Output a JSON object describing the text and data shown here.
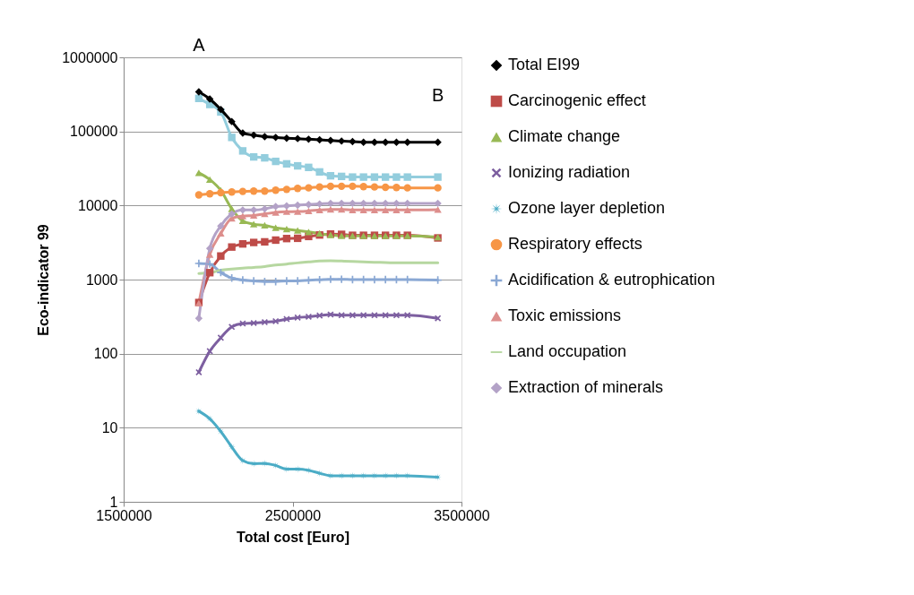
{
  "chart_data": {
    "type": "line",
    "xlabel": "Total cost [Euro]",
    "ylabel": "Eco-indicator 99",
    "x": [
      1945000,
      2010000,
      2075000,
      2140000,
      2205000,
      2270000,
      2335000,
      2400000,
      2465000,
      2530000,
      2595000,
      2660000,
      2725000,
      2790000,
      2855000,
      2920000,
      2985000,
      3050000,
      3115000,
      3180000,
      3360000
    ],
    "xlim": [
      1500000,
      3500000
    ],
    "xticks": [
      1500000,
      2500000,
      3500000
    ],
    "ylim": [
      1,
      1000000
    ],
    "yticks": [
      1,
      10,
      100,
      1000,
      10000,
      100000,
      1000000
    ],
    "log": "y",
    "grid": "y",
    "legend": "right",
    "annotations": [
      {
        "text": "A",
        "x": 1945000,
        "y": 342000
      },
      {
        "text": "B",
        "x": 3360000,
        "y": 71500
      }
    ],
    "series": [
      {
        "color": "#93cddd",
        "marker": "square",
        "values": [
          279000,
          231000,
          183000,
          83000,
          54600,
          45300,
          44000,
          39400,
          36500,
          34300,
          32700,
          28400,
          25200,
          24700,
          24200,
          24200,
          24200,
          24200,
          24200,
          24200,
          24200
        ]
      },
      {
        "name": "Total EI99",
        "color": "#000000",
        "marker": "diamond",
        "values": [
          342000,
          274000,
          198000,
          136000,
          95000,
          89000,
          85000,
          83000,
          81000,
          80000,
          78500,
          77000,
          75500,
          74200,
          72900,
          71500,
          71500,
          71500,
          71500,
          71500,
          71500
        ]
      },
      {
        "name": "Carcinogenic effect",
        "color": "#be4b48",
        "marker": "square",
        "values": [
          490,
          1240,
          2080,
          2750,
          3030,
          3170,
          3230,
          3410,
          3580,
          3610,
          3820,
          4000,
          4120,
          4080,
          3960,
          3960,
          3960,
          3960,
          3960,
          3960,
          3650
        ]
      },
      {
        "name": "Climate change",
        "color": "#98b954",
        "marker": "triangle",
        "values": [
          27600,
          22400,
          16000,
          9000,
          6200,
          5600,
          5400,
          5000,
          4800,
          4600,
          4400,
          4200,
          4000,
          3900,
          3900,
          3900,
          3900,
          3900,
          3900,
          3900,
          3750
        ]
      },
      {
        "name": "Ionizing radiation",
        "color": "#7d5fa0",
        "marker": "cross",
        "values": [
          56,
          108,
          164,
          230,
          255,
          259,
          266,
          274,
          293,
          307,
          315,
          327,
          337,
          330,
          330,
          330,
          330,
          330,
          330,
          330,
          300
        ]
      },
      {
        "name": "Ozone layer depletion",
        "color": "#4bacc6",
        "marker": "star",
        "values": [
          16.7,
          13.2,
          8.9,
          5.5,
          3.6,
          3.27,
          3.3,
          3.1,
          2.76,
          2.76,
          2.66,
          2.43,
          2.25,
          2.25,
          2.25,
          2.25,
          2.25,
          2.25,
          2.25,
          2.25,
          2.15
        ]
      },
      {
        "name": "Respiratory effects",
        "color": "#f79646",
        "marker": "circle",
        "values": [
          13900,
          14400,
          14900,
          15200,
          15500,
          15650,
          15650,
          16100,
          16500,
          17000,
          17300,
          17800,
          18200,
          18200,
          18200,
          18000,
          17800,
          17600,
          17500,
          17300,
          17300
        ]
      },
      {
        "name": "Acidification & eutrophication",
        "color": "#8aa8d4",
        "marker": "plus",
        "values": [
          1650,
          1620,
          1245,
          1050,
          985,
          960,
          940,
          940,
          960,
          960,
          980,
          995,
          1010,
          1010,
          1000,
          1000,
          1000,
          1000,
          1000,
          1000,
          985
        ]
      },
      {
        "name": "Toxic emissions",
        "color": "#dd8e8c",
        "marker": "triangle",
        "values": [
          480,
          2180,
          4200,
          6700,
          7200,
          7350,
          7700,
          8070,
          8250,
          8300,
          8450,
          8700,
          8860,
          8860,
          8700,
          8700,
          8700,
          8700,
          8700,
          8700,
          8800
        ]
      },
      {
        "name": "Land occupation",
        "color": "#b6d7a0",
        "marker": "none",
        "values": [
          1210,
          1230,
          1340,
          1390,
          1430,
          1460,
          1500,
          1570,
          1620,
          1680,
          1730,
          1780,
          1800,
          1780,
          1760,
          1730,
          1710,
          1700,
          1680,
          1680,
          1680
        ]
      },
      {
        "name": "Extraction of minerals",
        "color": "#b3a2c7",
        "marker": "diamond",
        "values": [
          300,
          2630,
          5300,
          7700,
          8700,
          8700,
          9000,
          9700,
          9900,
          10100,
          10300,
          10500,
          10700,
          10700,
          10700,
          10700,
          10700,
          10700,
          10700,
          10700,
          10700
        ]
      }
    ]
  }
}
